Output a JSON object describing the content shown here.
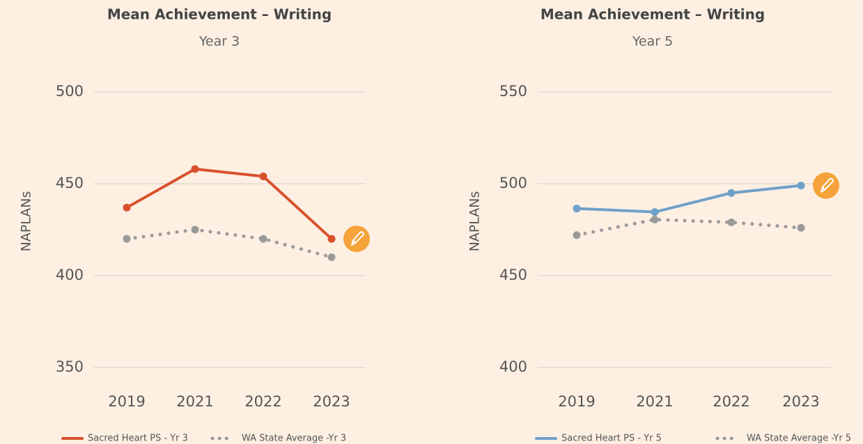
{
  "chart_data": [
    {
      "type": "line",
      "title": "Mean Achievement – Writing",
      "subtitle": "Year 3",
      "ylabel": "NAPLANs",
      "categories": [
        "2019",
        "2021",
        "2022",
        "2023"
      ],
      "series": [
        {
          "name": "Sacred Heart PS - Yr 3",
          "color": "#d9512c",
          "style": "solid",
          "values": [
            437,
            458,
            454,
            420
          ]
        },
        {
          "name": "WA State Average -Yr 3",
          "color": "#9a9a9a",
          "style": "dotted",
          "values": [
            420,
            425,
            420,
            410
          ]
        }
      ],
      "ylim": [
        350,
        500
      ],
      "yticks": [
        350,
        400,
        450,
        500
      ],
      "grid": true,
      "legend": "bottom"
    },
    {
      "type": "line",
      "title": "Mean Achievement – Writing",
      "subtitle": "Year 5",
      "ylabel": "NAPLANs",
      "categories": [
        "2019",
        "2021",
        "2022",
        "2023"
      ],
      "series": [
        {
          "name": "Sacred Heart PS - Yr 5",
          "color": "#6fa0c8",
          "style": "solid",
          "values": [
            486.5,
            484.6,
            495,
            499
          ]
        },
        {
          "name": "WA State Average -Yr 5",
          "color": "#9a9a9a",
          "style": "dotted",
          "values": [
            472,
            480.5,
            479,
            476
          ]
        }
      ],
      "ylim": [
        400,
        550
      ],
      "yticks": [
        400,
        450,
        500,
        550
      ],
      "grid": true,
      "legend": "bottom"
    }
  ]
}
